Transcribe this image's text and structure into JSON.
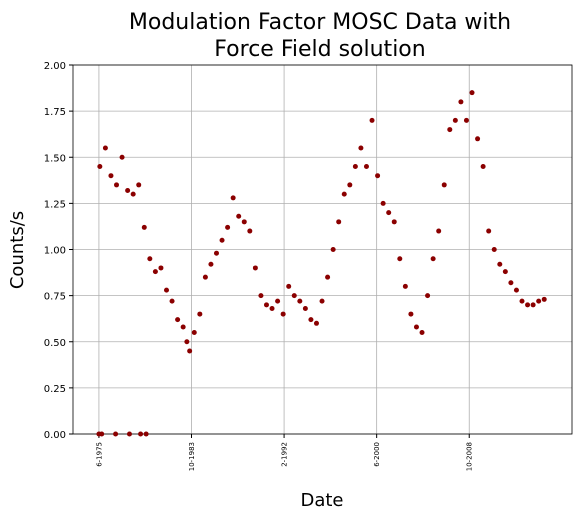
{
  "chart_data": {
    "type": "scatter",
    "title": [
      "Modulation Factor MOSC Data with",
      "Force Field solution"
    ],
    "xlabel": "Date",
    "ylabel": "Counts/s",
    "color": "#8b0000",
    "grid": true,
    "x": [
      "1975-06",
      "1975-09",
      "1976-12",
      "1978-03",
      "1979-03",
      "1979-09",
      "1975-07",
      "1976-01",
      "1976-07",
      "1977-01",
      "1977-07",
      "1978-01",
      "1978-07",
      "1979-01",
      "1979-07",
      "1980-01",
      "1980-07",
      "1981-01",
      "1981-07",
      "1982-01",
      "1982-07",
      "1983-01",
      "1983-05",
      "1983-08",
      "1984-01",
      "1984-07",
      "1985-01",
      "1985-07",
      "1986-01",
      "1986-07",
      "1987-01",
      "1987-07",
      "1988-01",
      "1988-07",
      "1989-01",
      "1989-07",
      "1990-01",
      "1990-07",
      "1991-01",
      "1991-07",
      "1992-01",
      "1992-07",
      "1993-01",
      "1993-07",
      "1994-01",
      "1994-07",
      "1995-01",
      "1995-07",
      "1996-01",
      "1996-07",
      "1997-01",
      "1997-07",
      "1998-01",
      "1998-07",
      "1999-01",
      "1999-07",
      "2000-01",
      "2000-07",
      "2001-01",
      "2001-07",
      "2002-01",
      "2002-07",
      "2003-01",
      "2003-07",
      "2004-01",
      "2004-07",
      "2005-01",
      "2005-07",
      "2006-01",
      "2006-07",
      "2007-01",
      "2007-07",
      "2008-01",
      "2008-07",
      "2009-01",
      "2009-07",
      "2010-01",
      "2010-07",
      "2011-01",
      "2011-07",
      "2012-01",
      "2012-07",
      "2013-01",
      "2013-07",
      "2014-01",
      "2014-07",
      "2015-01",
      "2015-07"
    ],
    "values": [
      0,
      0,
      0,
      0,
      0,
      0,
      1.45,
      1.55,
      1.4,
      1.35,
      1.5,
      1.32,
      1.3,
      1.35,
      1.12,
      0.95,
      0.88,
      0.9,
      0.78,
      0.72,
      0.62,
      0.58,
      0.5,
      0.45,
      0.55,
      0.65,
      0.85,
      0.92,
      0.98,
      1.05,
      1.12,
      1.28,
      1.18,
      1.15,
      1.1,
      0.9,
      0.75,
      0.7,
      0.68,
      0.72,
      0.65,
      0.8,
      0.75,
      0.72,
      0.68,
      0.62,
      0.6,
      0.72,
      0.85,
      1.0,
      1.15,
      1.3,
      1.35,
      1.45,
      1.55,
      1.45,
      1.7,
      1.4,
      1.25,
      1.2,
      1.15,
      0.95,
      0.8,
      0.65,
      0.58,
      0.55,
      0.75,
      0.95,
      1.1,
      1.35,
      1.65,
      1.7,
      1.8,
      1.7,
      1.85,
      1.6,
      1.45,
      1.1,
      1.0,
      0.92,
      0.88,
      0.82,
      0.78,
      0.72,
      0.7,
      0.7,
      0.72,
      0.73
    ],
    "xlim": [
      "1973-02",
      "2018-01"
    ],
    "xticks": [
      {
        "value": "1975-06",
        "label": "6-1975"
      },
      {
        "value": "1983-10",
        "label": "10-1983"
      },
      {
        "value": "1992-02",
        "label": "2-1992"
      },
      {
        "value": "2000-06",
        "label": "6-2000"
      },
      {
        "value": "2008-10",
        "label": "10-2008"
      }
    ],
    "ylim": [
      0,
      2
    ],
    "yticks": [
      {
        "value": 0,
        "label": "0.00"
      },
      {
        "value": 0.25,
        "label": "0.25"
      },
      {
        "value": 0.5,
        "label": "0.50"
      },
      {
        "value": 0.75,
        "label": "0.75"
      },
      {
        "value": 1,
        "label": "1.00"
      },
      {
        "value": 1.25,
        "label": "1.25"
      },
      {
        "value": 1.5,
        "label": "1.50"
      },
      {
        "value": 1.75,
        "label": "1.75"
      },
      {
        "value": 2,
        "label": "2.00"
      }
    ]
  }
}
